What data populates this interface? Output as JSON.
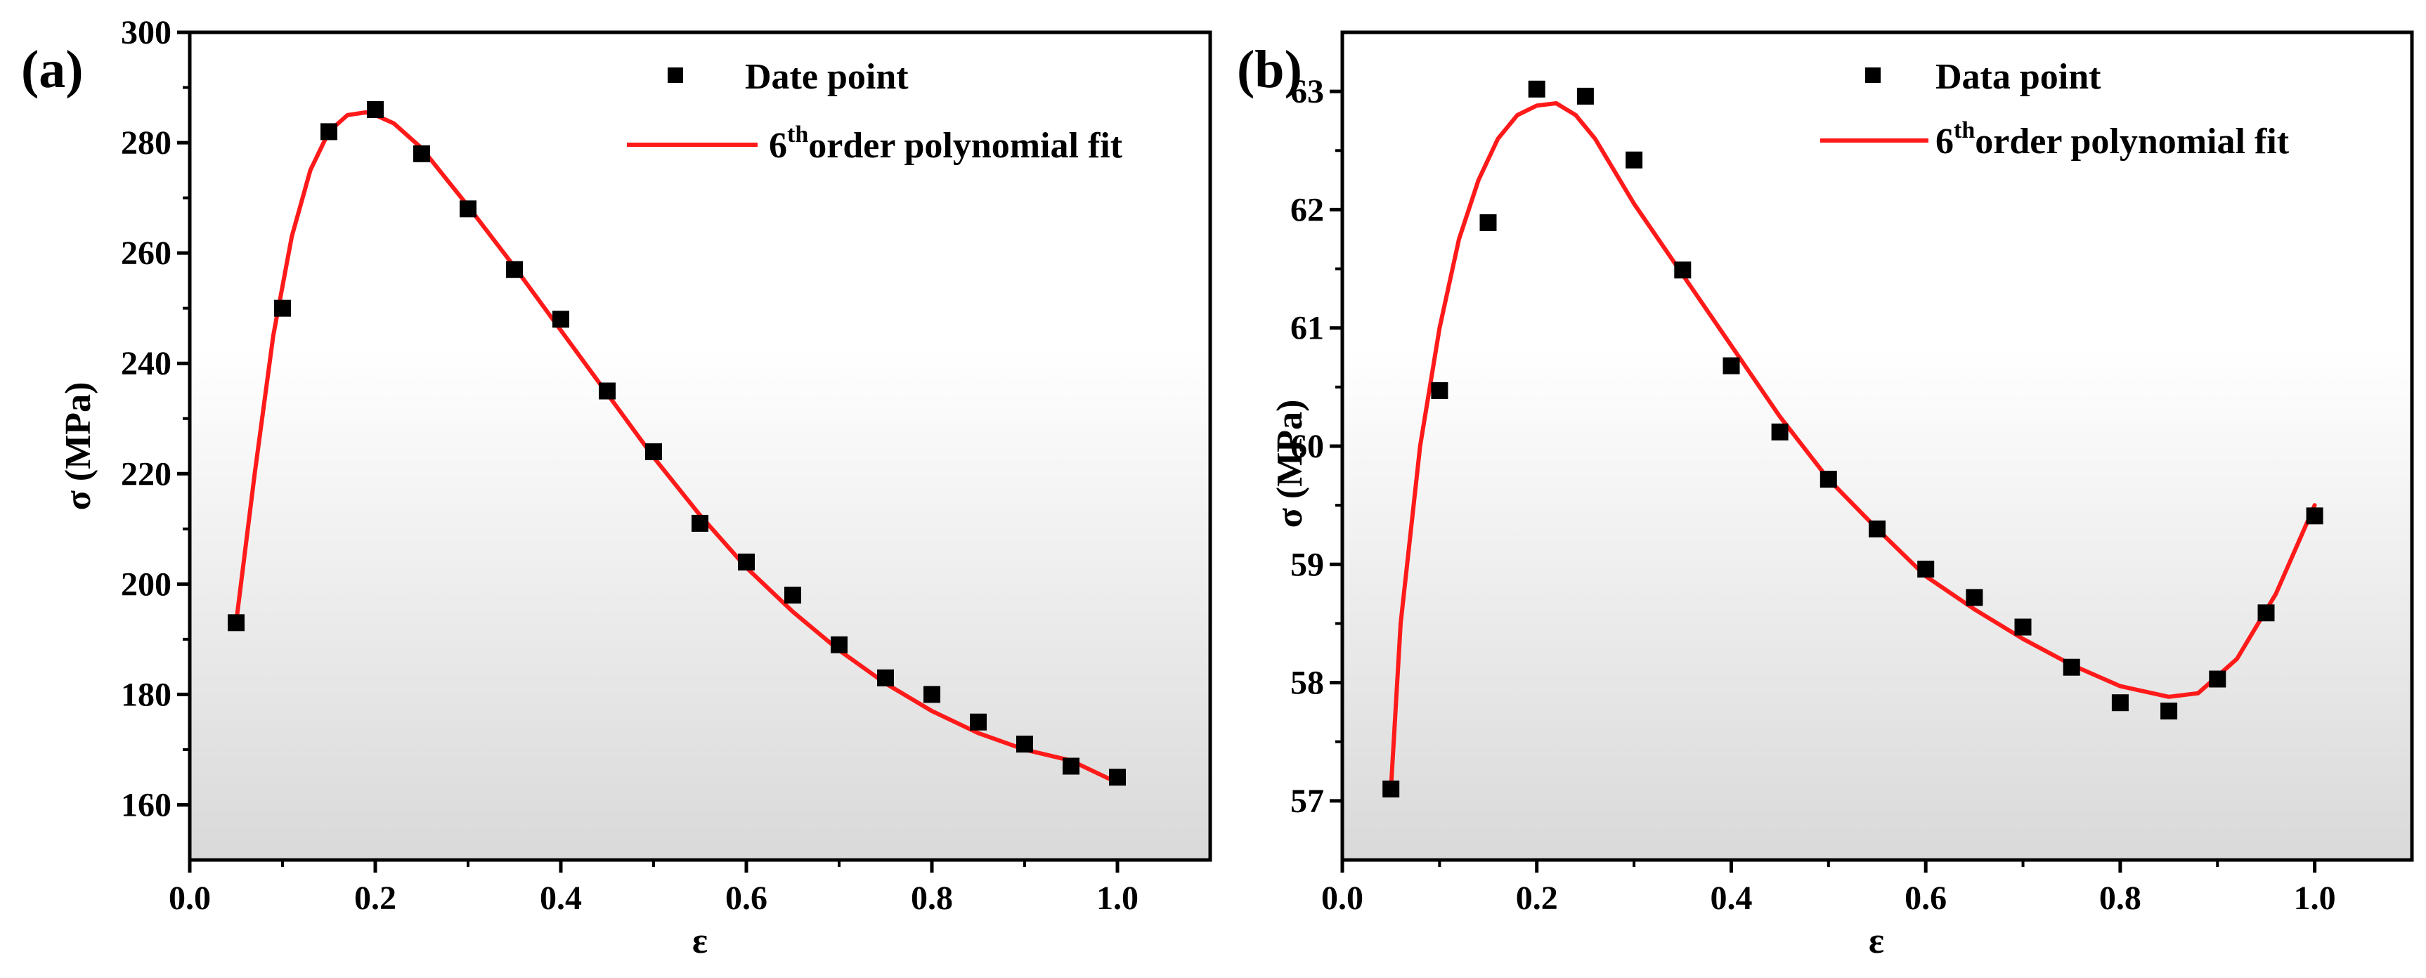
{
  "colors": {
    "data_marker": "#000000",
    "fit_line": "#ff1a1a",
    "plot_bg_top": "#ffffff",
    "plot_bg_bottom": "#dcdcdc"
  },
  "chart_data": [
    {
      "panel_label": "(a)",
      "type": "scatter",
      "xlabel": "ε",
      "ylabel": "σ (MPa)",
      "xlim": [
        0.0,
        1.1
      ],
      "ylim": [
        150,
        300
      ],
      "xticks": [
        0.0,
        0.2,
        0.4,
        0.6,
        0.8,
        1.0
      ],
      "xtick_labels": [
        "0.0",
        "0.2",
        "0.4",
        "0.6",
        "0.8",
        "1.0"
      ],
      "yticks": [
        160,
        180,
        200,
        220,
        240,
        260,
        280,
        300
      ],
      "ytick_labels": [
        "160",
        "180",
        "200",
        "220",
        "240",
        "260",
        "280",
        "300"
      ],
      "legend_position": "top-right",
      "series": [
        {
          "name": "Date point",
          "kind": "markers",
          "x": [
            0.05,
            0.1,
            0.15,
            0.2,
            0.25,
            0.3,
            0.35,
            0.4,
            0.45,
            0.5,
            0.55,
            0.6,
            0.65,
            0.7,
            0.75,
            0.8,
            0.85,
            0.9,
            0.95,
            1.0
          ],
          "y": [
            193,
            250,
            282,
            286,
            278,
            268,
            257,
            248,
            235,
            224,
            211,
            204,
            198,
            189,
            183,
            180,
            175,
            171,
            167,
            165
          ]
        },
        {
          "name_prefix": "6",
          "name_sup": "th",
          "name_suffix": "order polynomial fit",
          "kind": "line",
          "x": [
            0.05,
            0.07,
            0.09,
            0.11,
            0.13,
            0.15,
            0.17,
            0.19,
            0.2,
            0.22,
            0.25,
            0.3,
            0.35,
            0.4,
            0.45,
            0.5,
            0.55,
            0.6,
            0.65,
            0.7,
            0.75,
            0.8,
            0.85,
            0.9,
            0.95,
            1.0
          ],
          "y": [
            193,
            220,
            245,
            263,
            275,
            282,
            285,
            285.5,
            285,
            283.5,
            279,
            268.5,
            257.5,
            246,
            234.5,
            223,
            212.5,
            203,
            195,
            188,
            182,
            177,
            173,
            170,
            168,
            164
          ]
        }
      ]
    },
    {
      "panel_label": "(b)",
      "type": "scatter",
      "xlabel": "ε",
      "ylabel": "σ (MPa)",
      "xlim": [
        0.0,
        1.1
      ],
      "ylim": [
        56.5,
        63.5
      ],
      "xticks": [
        0.0,
        0.2,
        0.4,
        0.6,
        0.8,
        1.0
      ],
      "xtick_labels": [
        "0.0",
        "0.2",
        "0.4",
        "0.6",
        "0.8",
        "1.0"
      ],
      "yticks": [
        57,
        58,
        59,
        60,
        61,
        62,
        63
      ],
      "ytick_labels": [
        "57",
        "58",
        "59",
        "60",
        "61",
        "62",
        "63"
      ],
      "legend_position": "top-right",
      "series": [
        {
          "name": "Data point",
          "kind": "markers",
          "x": [
            0.05,
            0.1,
            0.15,
            0.2,
            0.25,
            0.3,
            0.35,
            0.4,
            0.45,
            0.5,
            0.55,
            0.6,
            0.65,
            0.7,
            0.75,
            0.8,
            0.85,
            0.9,
            0.95,
            1.0
          ],
          "y": [
            57.1,
            60.47,
            61.89,
            63.02,
            62.96,
            62.42,
            61.49,
            60.68,
            60.12,
            59.72,
            59.3,
            58.96,
            58.72,
            58.47,
            58.13,
            57.83,
            57.76,
            58.03,
            58.59,
            59.41
          ]
        },
        {
          "name_prefix": "6",
          "name_sup": "th",
          "name_suffix": "order polynomial fit",
          "kind": "line",
          "x": [
            0.05,
            0.06,
            0.08,
            0.1,
            0.12,
            0.14,
            0.16,
            0.18,
            0.2,
            0.22,
            0.24,
            0.26,
            0.3,
            0.35,
            0.4,
            0.45,
            0.5,
            0.55,
            0.6,
            0.65,
            0.7,
            0.75,
            0.8,
            0.85,
            0.88,
            0.92,
            0.96,
            1.0
          ],
          "y": [
            57.1,
            58.5,
            60.0,
            61.0,
            61.75,
            62.25,
            62.6,
            62.8,
            62.88,
            62.9,
            62.8,
            62.6,
            62.05,
            61.45,
            60.85,
            60.25,
            59.72,
            59.3,
            58.9,
            58.62,
            58.37,
            58.15,
            57.97,
            57.88,
            57.91,
            58.2,
            58.75,
            59.5
          ]
        }
      ]
    }
  ]
}
